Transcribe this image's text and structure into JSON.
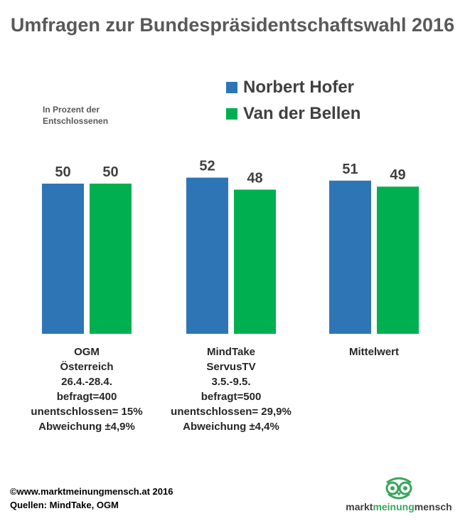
{
  "title": "Umfragen zur Bundespräsidentschaftswahl 2016",
  "unit_note": "In Prozent der Entschlossenen",
  "chart_data": {
    "type": "bar",
    "title": "Umfragen zur Bundespräsidentschaftswahl 2016",
    "ylabel": "In Prozent der Entschlossenen",
    "ylim": [
      0,
      60
    ],
    "grid": false,
    "legend": "top-right",
    "categories": [
      "OGM",
      "MindTake",
      "Mittelwert"
    ],
    "series": [
      {
        "name": "Norbert Hofer",
        "color": "#2e75b6",
        "values": [
          50,
          52,
          51
        ]
      },
      {
        "name": "Van der Bellen",
        "color": "#00b050",
        "values": [
          50,
          48,
          49
        ]
      }
    ]
  },
  "group_labels": [
    [
      "OGM",
      "Österreich",
      "26.4.-28.4.",
      "befragt=400",
      "unentschlossen= 15%",
      "Abweichung ±4,9%"
    ],
    [
      "MindTake",
      "ServusTV",
      "3.5.-9.5.",
      "befragt=500",
      "unentschlossen= 29,9%",
      "Abweichung ±4,4%"
    ],
    [
      "Mittelwert"
    ]
  ],
  "footer": {
    "copyright": "©www.marktmeinungmensch.at 2016",
    "sources": "Quellen: MindTake, OGM"
  },
  "logo": {
    "word1": "markt",
    "word2": "meinung",
    "word3": "mensch",
    "icon": "owl-icon",
    "color": "#3aa55c"
  }
}
